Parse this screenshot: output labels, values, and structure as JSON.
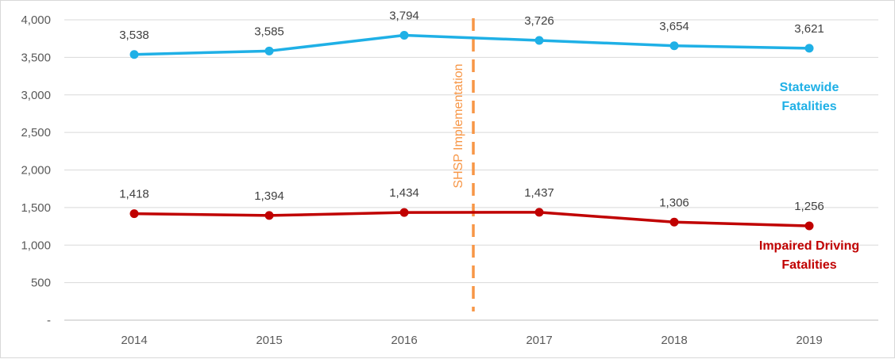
{
  "chart_data": {
    "type": "line",
    "title": "",
    "xlabel": "",
    "ylabel": "",
    "categories": [
      "2014",
      "2015",
      "2016",
      "2017",
      "2018",
      "2019"
    ],
    "ylim": [
      0,
      4000
    ],
    "yticks": [
      0,
      500,
      1000,
      1500,
      2000,
      2500,
      3000,
      3500,
      4000
    ],
    "ytick_labels": [
      "-",
      "500",
      "1,000",
      "1,500",
      "2,000",
      "2,500",
      "3,000",
      "3,500",
      "4,000"
    ],
    "grid": true,
    "legend": "none",
    "series": [
      {
        "name": "Statewide Fatalities",
        "label_lines": [
          "Statewide",
          "Fatalities"
        ],
        "color": "#1fb0e6",
        "values": [
          3538,
          3585,
          3794,
          3726,
          3654,
          3621
        ],
        "data_labels": [
          "3,538",
          "3,585",
          "3,794",
          "3,726",
          "3,654",
          "3,621"
        ]
      },
      {
        "name": "Impaired Driving Fatalities",
        "label_lines": [
          "Impaired Driving",
          "Fatalities"
        ],
        "color": "#c00000",
        "values": [
          1418,
          1394,
          1434,
          1437,
          1306,
          1256
        ],
        "data_labels": [
          "1,418",
          "1,394",
          "1,434",
          "1,437",
          "1,306",
          "1,256"
        ]
      }
    ],
    "annotations": [
      {
        "text": "SHSP Implementation",
        "x_between": [
          "2016",
          "2017"
        ],
        "style": "dashed-vertical-line",
        "color": "#f79646"
      }
    ]
  }
}
